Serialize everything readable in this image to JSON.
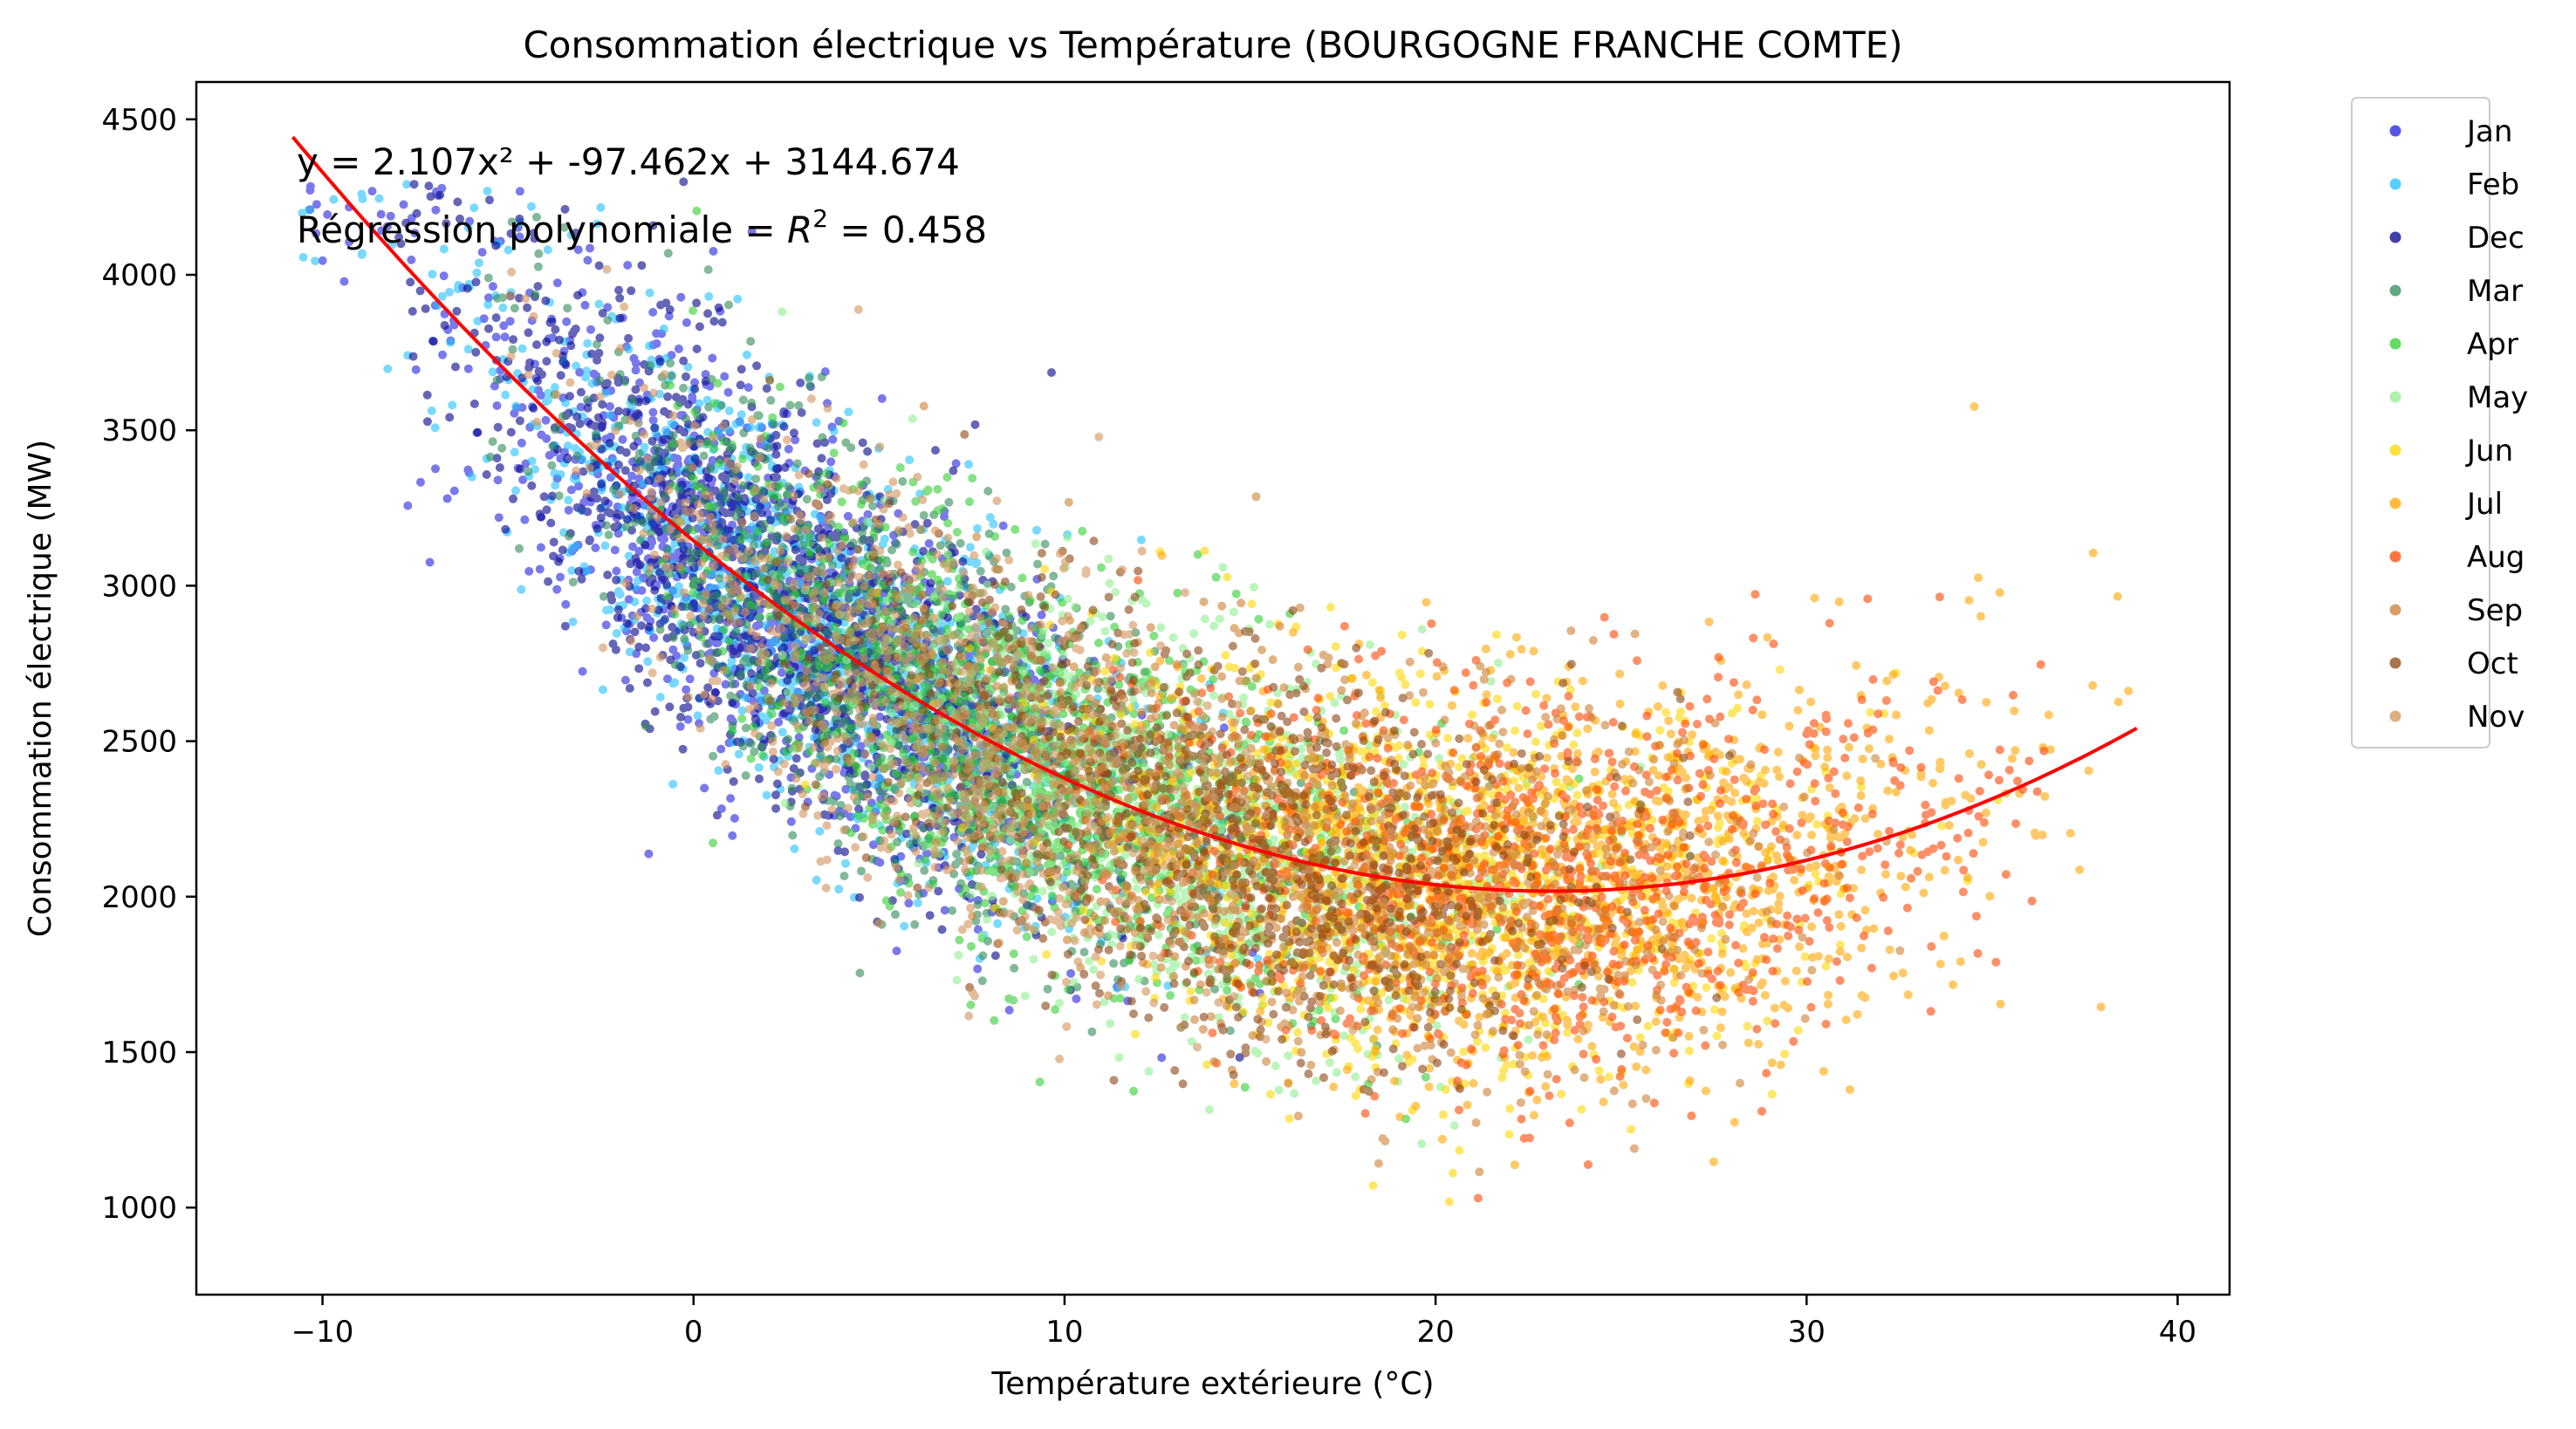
{
  "chart_data": {
    "type": "scatter",
    "title": "Consommation électrique vs Température (BOURGOGNE FRANCHE COMTE)",
    "xlabel": "Température extérieure (°C)",
    "ylabel": "Consommation électrique (MW)",
    "xlim": [
      -13.4,
      41.4
    ],
    "ylim": [
      720,
      4620
    ],
    "x_ticks": [
      -10,
      0,
      10,
      20,
      30,
      40
    ],
    "y_ticks": [
      1000,
      1500,
      2000,
      2500,
      3000,
      3500,
      4000,
      4500
    ],
    "x_tick_labels": [
      "−10",
      "0",
      "10",
      "20",
      "30",
      "40"
    ],
    "y_tick_labels": [
      "1000",
      "1500",
      "2000",
      "2500",
      "3000",
      "3500",
      "4000",
      "4500"
    ],
    "legend_position": "outside-right",
    "annotation_equation": "y = 2.107x² + -97.462x + 3144.674",
    "annotation_r2_prefix": "Régression polynomiale = ",
    "annotation_r2_symbol": "R",
    "annotation_r2_sup": "2",
    "annotation_r2_value": " = 0.458",
    "regression": {
      "a": 2.107,
      "b": -97.462,
      "c": 3144.674,
      "x_range": [
        -10.8,
        38.9
      ],
      "r2": 0.458,
      "color": "#ff0000"
    },
    "series": [
      {
        "name": "Jan",
        "color": "#1f1fdd",
        "t_mean": 2.5,
        "t_sd": 4.5,
        "t_min": -10.5,
        "t_max": 16
      },
      {
        "name": "Feb",
        "color": "#1fbfff",
        "t_mean": 3,
        "t_sd": 4.5,
        "t_min": -10.8,
        "t_max": 17.5
      },
      {
        "name": "Dec",
        "color": "#00008b",
        "t_mean": 2,
        "t_sd": 4,
        "t_min": -8,
        "t_max": 15
      },
      {
        "name": "Mar",
        "color": "#2e8b57",
        "t_mean": 6,
        "t_sd": 4.5,
        "t_min": -6,
        "t_max": 19
      },
      {
        "name": "Apr",
        "color": "#32cd32",
        "t_mean": 9,
        "t_sd": 4.5,
        "t_min": -1,
        "t_max": 26
      },
      {
        "name": "May",
        "color": "#90ee90",
        "t_mean": 13,
        "t_sd": 4.5,
        "t_min": 2,
        "t_max": 28
      },
      {
        "name": "Jun",
        "color": "#ffd700",
        "t_mean": 20,
        "t_sd": 5,
        "t_min": 0,
        "t_max": 36
      },
      {
        "name": "Jul",
        "color": "#ffa500",
        "t_mean": 24,
        "t_sd": 5.5,
        "t_min": 12,
        "t_max": 38.9
      },
      {
        "name": "Aug",
        "color": "#ff4500",
        "t_mean": 23,
        "t_sd": 5.5,
        "t_min": 10,
        "t_max": 36.5
      },
      {
        "name": "Sep",
        "color": "#cd7f32",
        "t_mean": 18,
        "t_sd": 5,
        "t_min": 5,
        "t_max": 33
      },
      {
        "name": "Oct",
        "color": "#8b4513",
        "t_mean": 14,
        "t_sd": 5,
        "t_min": 2,
        "t_max": 28
      },
      {
        "name": "Nov",
        "color": "#d2935a",
        "t_mean": 7,
        "t_sd": 4.5,
        "t_min": -5,
        "t_max": 22
      }
    ]
  }
}
